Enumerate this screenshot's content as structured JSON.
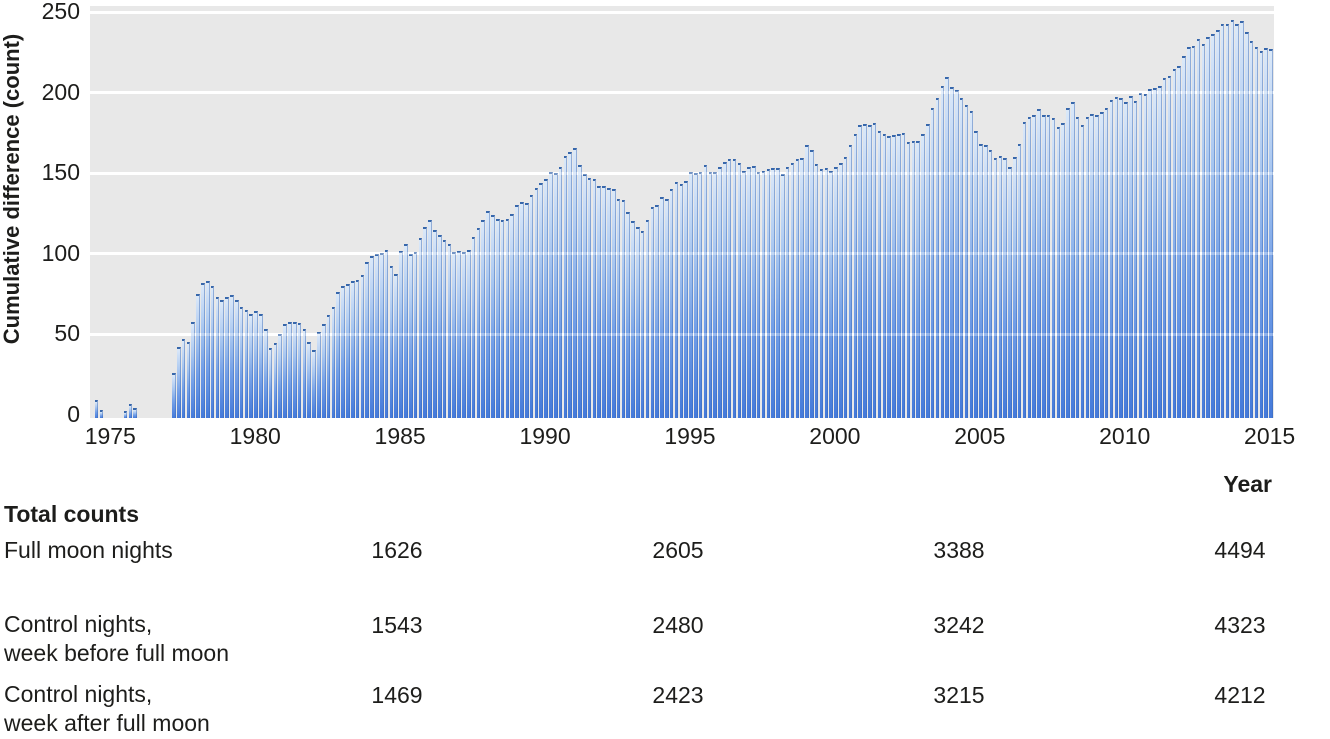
{
  "chart": {
    "y_axis_title": "Cumulative difference (count)",
    "x_axis_title": "Year",
    "y_ticks": [
      0,
      50,
      100,
      150,
      200,
      250
    ],
    "x_ticks": [
      1975,
      1980,
      1985,
      1990,
      1995,
      2000,
      2005,
      2010,
      2015
    ]
  },
  "chart_data": {
    "type": "bar",
    "title": "",
    "xlabel": "Year",
    "ylabel": "Cumulative difference (count)",
    "x_range": [
      1974.3,
      2015.15
    ],
    "ylim": [
      0,
      250
    ],
    "grid": "horizontal white lines every 50",
    "legend": "none",
    "bars_per_year": 6,
    "description": "Dense vertical blue gradient bars; cumulative difference in counts between full moon nights and control nights, 1975-2015; envelope keypoints read from plot",
    "envelope_keypoints": [
      [
        1974.4,
        0
      ],
      [
        1974.45,
        4
      ],
      [
        1974.5,
        9
      ],
      [
        1974.6,
        11
      ],
      [
        1974.7,
        4
      ],
      [
        1974.8,
        0
      ],
      [
        1975.5,
        0
      ],
      [
        1975.6,
        5
      ],
      [
        1975.75,
        7
      ],
      [
        1975.9,
        4
      ],
      [
        1976.05,
        0
      ],
      [
        1977.05,
        0
      ],
      [
        1977.15,
        8
      ],
      [
        1977.25,
        34
      ],
      [
        1977.4,
        44
      ],
      [
        1977.55,
        46
      ],
      [
        1977.7,
        44
      ],
      [
        1977.85,
        52
      ],
      [
        1978.0,
        72
      ],
      [
        1978.15,
        82
      ],
      [
        1978.3,
        86
      ],
      [
        1978.45,
        83
      ],
      [
        1978.6,
        79
      ],
      [
        1978.75,
        75
      ],
      [
        1978.9,
        73
      ],
      [
        1979.1,
        74
      ],
      [
        1979.3,
        71
      ],
      [
        1979.5,
        69
      ],
      [
        1979.7,
        66
      ],
      [
        1979.9,
        64
      ],
      [
        1980.1,
        64
      ],
      [
        1980.3,
        58
      ],
      [
        1980.5,
        43
      ],
      [
        1980.65,
        40
      ],
      [
        1980.8,
        47
      ],
      [
        1981.0,
        53
      ],
      [
        1981.2,
        58
      ],
      [
        1981.4,
        59
      ],
      [
        1981.6,
        55
      ],
      [
        1981.8,
        50
      ],
      [
        1981.95,
        44
      ],
      [
        1982.05,
        40
      ],
      [
        1982.2,
        53
      ],
      [
        1982.4,
        59
      ],
      [
        1982.6,
        64
      ],
      [
        1982.8,
        72
      ],
      [
        1983.0,
        79
      ],
      [
        1983.2,
        82
      ],
      [
        1983.4,
        81
      ],
      [
        1983.6,
        85
      ],
      [
        1983.8,
        90
      ],
      [
        1983.95,
        100
      ],
      [
        1984.15,
        101
      ],
      [
        1984.35,
        103
      ],
      [
        1984.55,
        101
      ],
      [
        1984.75,
        94
      ],
      [
        1984.9,
        89
      ],
      [
        1985.05,
        104
      ],
      [
        1985.15,
        108
      ],
      [
        1985.3,
        103
      ],
      [
        1985.5,
        99
      ],
      [
        1985.7,
        110
      ],
      [
        1985.9,
        118
      ],
      [
        1986.05,
        121
      ],
      [
        1986.25,
        116
      ],
      [
        1986.45,
        113
      ],
      [
        1986.65,
        107
      ],
      [
        1986.85,
        103
      ],
      [
        1987.05,
        101
      ],
      [
        1987.25,
        103
      ],
      [
        1987.45,
        105
      ],
      [
        1987.65,
        113
      ],
      [
        1987.85,
        122
      ],
      [
        1988.05,
        128
      ],
      [
        1988.25,
        126
      ],
      [
        1988.45,
        121
      ],
      [
        1988.65,
        121
      ],
      [
        1988.85,
        124
      ],
      [
        1989.05,
        128
      ],
      [
        1989.25,
        131
      ],
      [
        1989.45,
        134
      ],
      [
        1989.65,
        138
      ],
      [
        1989.85,
        142
      ],
      [
        1990.05,
        145
      ],
      [
        1990.25,
        149
      ],
      [
        1990.45,
        153
      ],
      [
        1990.65,
        159
      ],
      [
        1990.85,
        164
      ],
      [
        1991.0,
        166
      ],
      [
        1991.2,
        158
      ],
      [
        1991.4,
        151
      ],
      [
        1991.6,
        146
      ],
      [
        1991.8,
        144
      ],
      [
        1992.0,
        142
      ],
      [
        1992.2,
        140
      ],
      [
        1992.4,
        138
      ],
      [
        1992.6,
        135
      ],
      [
        1992.8,
        131
      ],
      [
        1993.0,
        125
      ],
      [
        1993.2,
        117
      ],
      [
        1993.35,
        113
      ],
      [
        1993.55,
        121
      ],
      [
        1993.75,
        128
      ],
      [
        1993.95,
        132
      ],
      [
        1994.15,
        134
      ],
      [
        1994.35,
        138
      ],
      [
        1994.55,
        142
      ],
      [
        1994.75,
        146
      ],
      [
        1994.95,
        148
      ],
      [
        1995.15,
        151
      ],
      [
        1995.35,
        152
      ],
      [
        1995.55,
        153
      ],
      [
        1995.75,
        152
      ],
      [
        1995.95,
        151
      ],
      [
        1996.15,
        153
      ],
      [
        1996.3,
        158
      ],
      [
        1996.45,
        163
      ],
      [
        1996.6,
        157
      ],
      [
        1996.75,
        154
      ],
      [
        1996.9,
        153
      ],
      [
        1997.1,
        152
      ],
      [
        1997.3,
        153
      ],
      [
        1997.5,
        152
      ],
      [
        1997.7,
        151
      ],
      [
        1997.9,
        152
      ],
      [
        1998.1,
        151
      ],
      [
        1998.3,
        152
      ],
      [
        1998.5,
        154
      ],
      [
        1998.7,
        156
      ],
      [
        1998.9,
        159
      ],
      [
        1999.05,
        168
      ],
      [
        1999.2,
        163
      ],
      [
        1999.4,
        158
      ],
      [
        1999.6,
        154
      ],
      [
        1999.8,
        151
      ],
      [
        2000.1,
        152
      ],
      [
        2000.3,
        155
      ],
      [
        2000.5,
        166
      ],
      [
        2000.7,
        175
      ],
      [
        2000.9,
        178
      ],
      [
        2001.1,
        181
      ],
      [
        2001.3,
        183
      ],
      [
        2001.5,
        179
      ],
      [
        2001.7,
        175
      ],
      [
        2001.9,
        172
      ],
      [
        2002.1,
        173
      ],
      [
        2002.3,
        175
      ],
      [
        2002.5,
        173
      ],
      [
        2002.7,
        169
      ],
      [
        2002.9,
        168
      ],
      [
        2003.1,
        174
      ],
      [
        2003.3,
        184
      ],
      [
        2003.5,
        196
      ],
      [
        2003.7,
        204
      ],
      [
        2003.85,
        208
      ],
      [
        2004.0,
        206
      ],
      [
        2004.2,
        200
      ],
      [
        2004.4,
        197
      ],
      [
        2004.6,
        190
      ],
      [
        2004.8,
        185
      ],
      [
        2005.0,
        172
      ],
      [
        2005.2,
        166
      ],
      [
        2005.4,
        163
      ],
      [
        2005.6,
        159
      ],
      [
        2005.75,
        163
      ],
      [
        2005.9,
        159
      ],
      [
        2006.05,
        155
      ],
      [
        2006.2,
        158
      ],
      [
        2006.35,
        167
      ],
      [
        2006.5,
        177
      ],
      [
        2006.7,
        184
      ],
      [
        2006.9,
        187
      ],
      [
        2007.1,
        189
      ],
      [
        2007.3,
        187
      ],
      [
        2007.5,
        186
      ],
      [
        2007.7,
        180
      ],
      [
        2007.9,
        181
      ],
      [
        2008.05,
        191
      ],
      [
        2008.2,
        194
      ],
      [
        2008.35,
        185
      ],
      [
        2008.55,
        181
      ],
      [
        2008.75,
        183
      ],
      [
        2008.95,
        185
      ],
      [
        2009.15,
        188
      ],
      [
        2009.35,
        191
      ],
      [
        2009.55,
        194
      ],
      [
        2009.75,
        196
      ],
      [
        2009.95,
        196
      ],
      [
        2010.15,
        195
      ],
      [
        2010.35,
        196
      ],
      [
        2010.55,
        198
      ],
      [
        2010.75,
        200
      ],
      [
        2010.95,
        202
      ],
      [
        2011.15,
        204
      ],
      [
        2011.35,
        207
      ],
      [
        2011.55,
        210
      ],
      [
        2011.75,
        215
      ],
      [
        2011.95,
        220
      ],
      [
        2012.15,
        225
      ],
      [
        2012.35,
        229
      ],
      [
        2012.55,
        232
      ],
      [
        2012.7,
        229
      ],
      [
        2012.85,
        232
      ],
      [
        2013.0,
        236
      ],
      [
        2013.2,
        239
      ],
      [
        2013.4,
        242
      ],
      [
        2013.6,
        244
      ],
      [
        2013.75,
        246
      ],
      [
        2013.9,
        242
      ],
      [
        2014.05,
        246
      ],
      [
        2014.2,
        238
      ],
      [
        2014.35,
        232
      ],
      [
        2014.5,
        229
      ],
      [
        2014.65,
        228
      ],
      [
        2014.8,
        228
      ],
      [
        2015.0,
        229
      ],
      [
        2015.15,
        227
      ]
    ],
    "colors": {
      "bar_gradient_top": "#dbe9fa",
      "bar_gradient_upper_mid": "#a9c8f2",
      "bar_gradient_lower_mid": "#6d9ce8",
      "bar_gradient_bottom": "#3a73da",
      "bar_cap": "#2d5fa8",
      "plot_background": "#e8e8e8",
      "gridline": "#ffffff",
      "text": "#1d1d1b"
    }
  },
  "table": {
    "title": "Total counts",
    "rows": [
      {
        "label_line1": "Full moon nights",
        "label_line2": "",
        "values": [
          "1626",
          "2605",
          "3388",
          "4494"
        ]
      },
      {
        "label_line1": "Control nights,",
        "label_line2": "week before full moon",
        "values": [
          "1543",
          "2480",
          "3242",
          "4323"
        ]
      },
      {
        "label_line1": "Control nights,",
        "label_line2": "week after full moon",
        "values": [
          "1469",
          "2423",
          "3215",
          "4212"
        ]
      }
    ]
  }
}
